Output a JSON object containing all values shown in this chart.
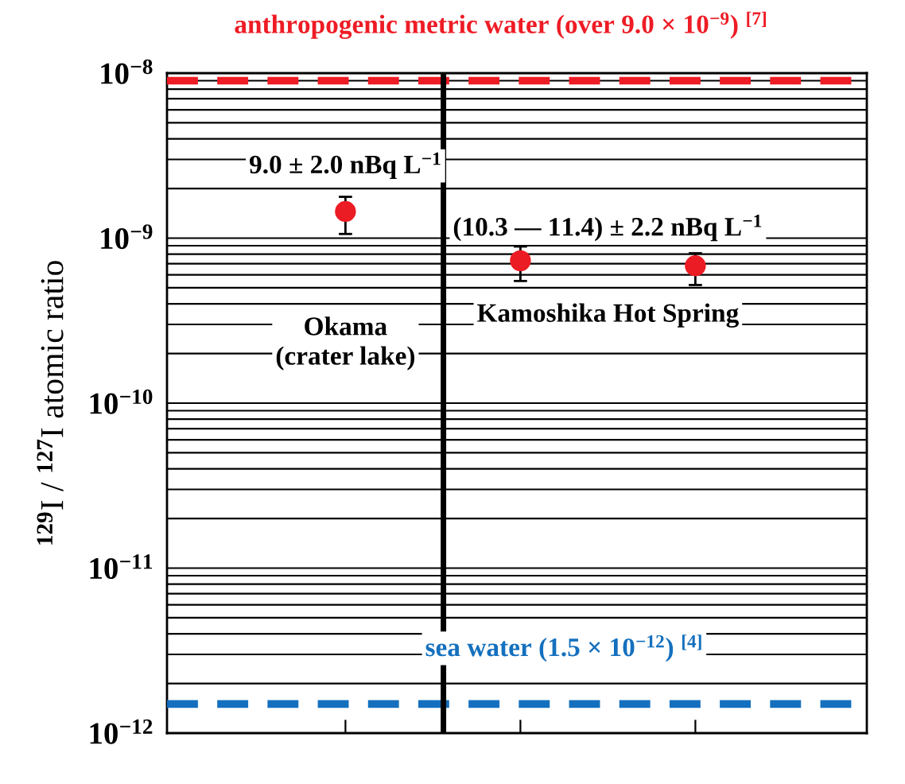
{
  "chart_data": {
    "type": "scatter",
    "ylabel": "$^{129}$I / $^{127}$I atomic ratio",
    "categories": [
      null,
      null,
      null
    ],
    "series": [
      {
        "color": "#ec1c24",
        "values": [
          1.45e-09,
          7.3e-10,
          6.8e-10
        ],
        "errors": [
          [
            1.06e-09,
            1.78e-09
          ],
          [
            5.5e-10,
            8.9e-10
          ],
          [
            5.2e-10,
            8.1e-10
          ]
        ]
      }
    ],
    "marker": "circle",
    "log": "y",
    "ylim": [
      1e-12,
      1e-08
    ],
    "yticks": [
      {
        "value": 1e-12,
        "label": "10$^{−12}$"
      },
      {
        "value": 1e-11,
        "label": "10$^{−11}$"
      },
      {
        "value": 1e-10,
        "label": "10$^{−10}$"
      },
      {
        "value": 1e-09,
        "label": "10$^{−9}$"
      },
      {
        "value": 1e-08,
        "label": "10$^{−8}$"
      }
    ],
    "grid": "y",
    "ref_lines": [
      {
        "axis": "y",
        "value": 9e-09,
        "label": "anthropogenic metric water (over 9.0 × 10$^{−9}$) $^{[7]}$",
        "color": "#ee1c25",
        "line_style": "dashed"
      },
      {
        "axis": "y",
        "value": 1.5e-12,
        "label": "sea water (1.5 × 10$^{−12}$) $^{[4]}$",
        "color": "#1470be",
        "line_style": "dashed"
      }
    ],
    "annotations": [
      "9.0 ± 2.0 nBq L$^{−1}$",
      "(10.3 — 11.4) ± 2.2 nBq L$^{−1}$",
      "Okama\n(crater lake)",
      "Kamoshika Hot Spring"
    ]
  }
}
